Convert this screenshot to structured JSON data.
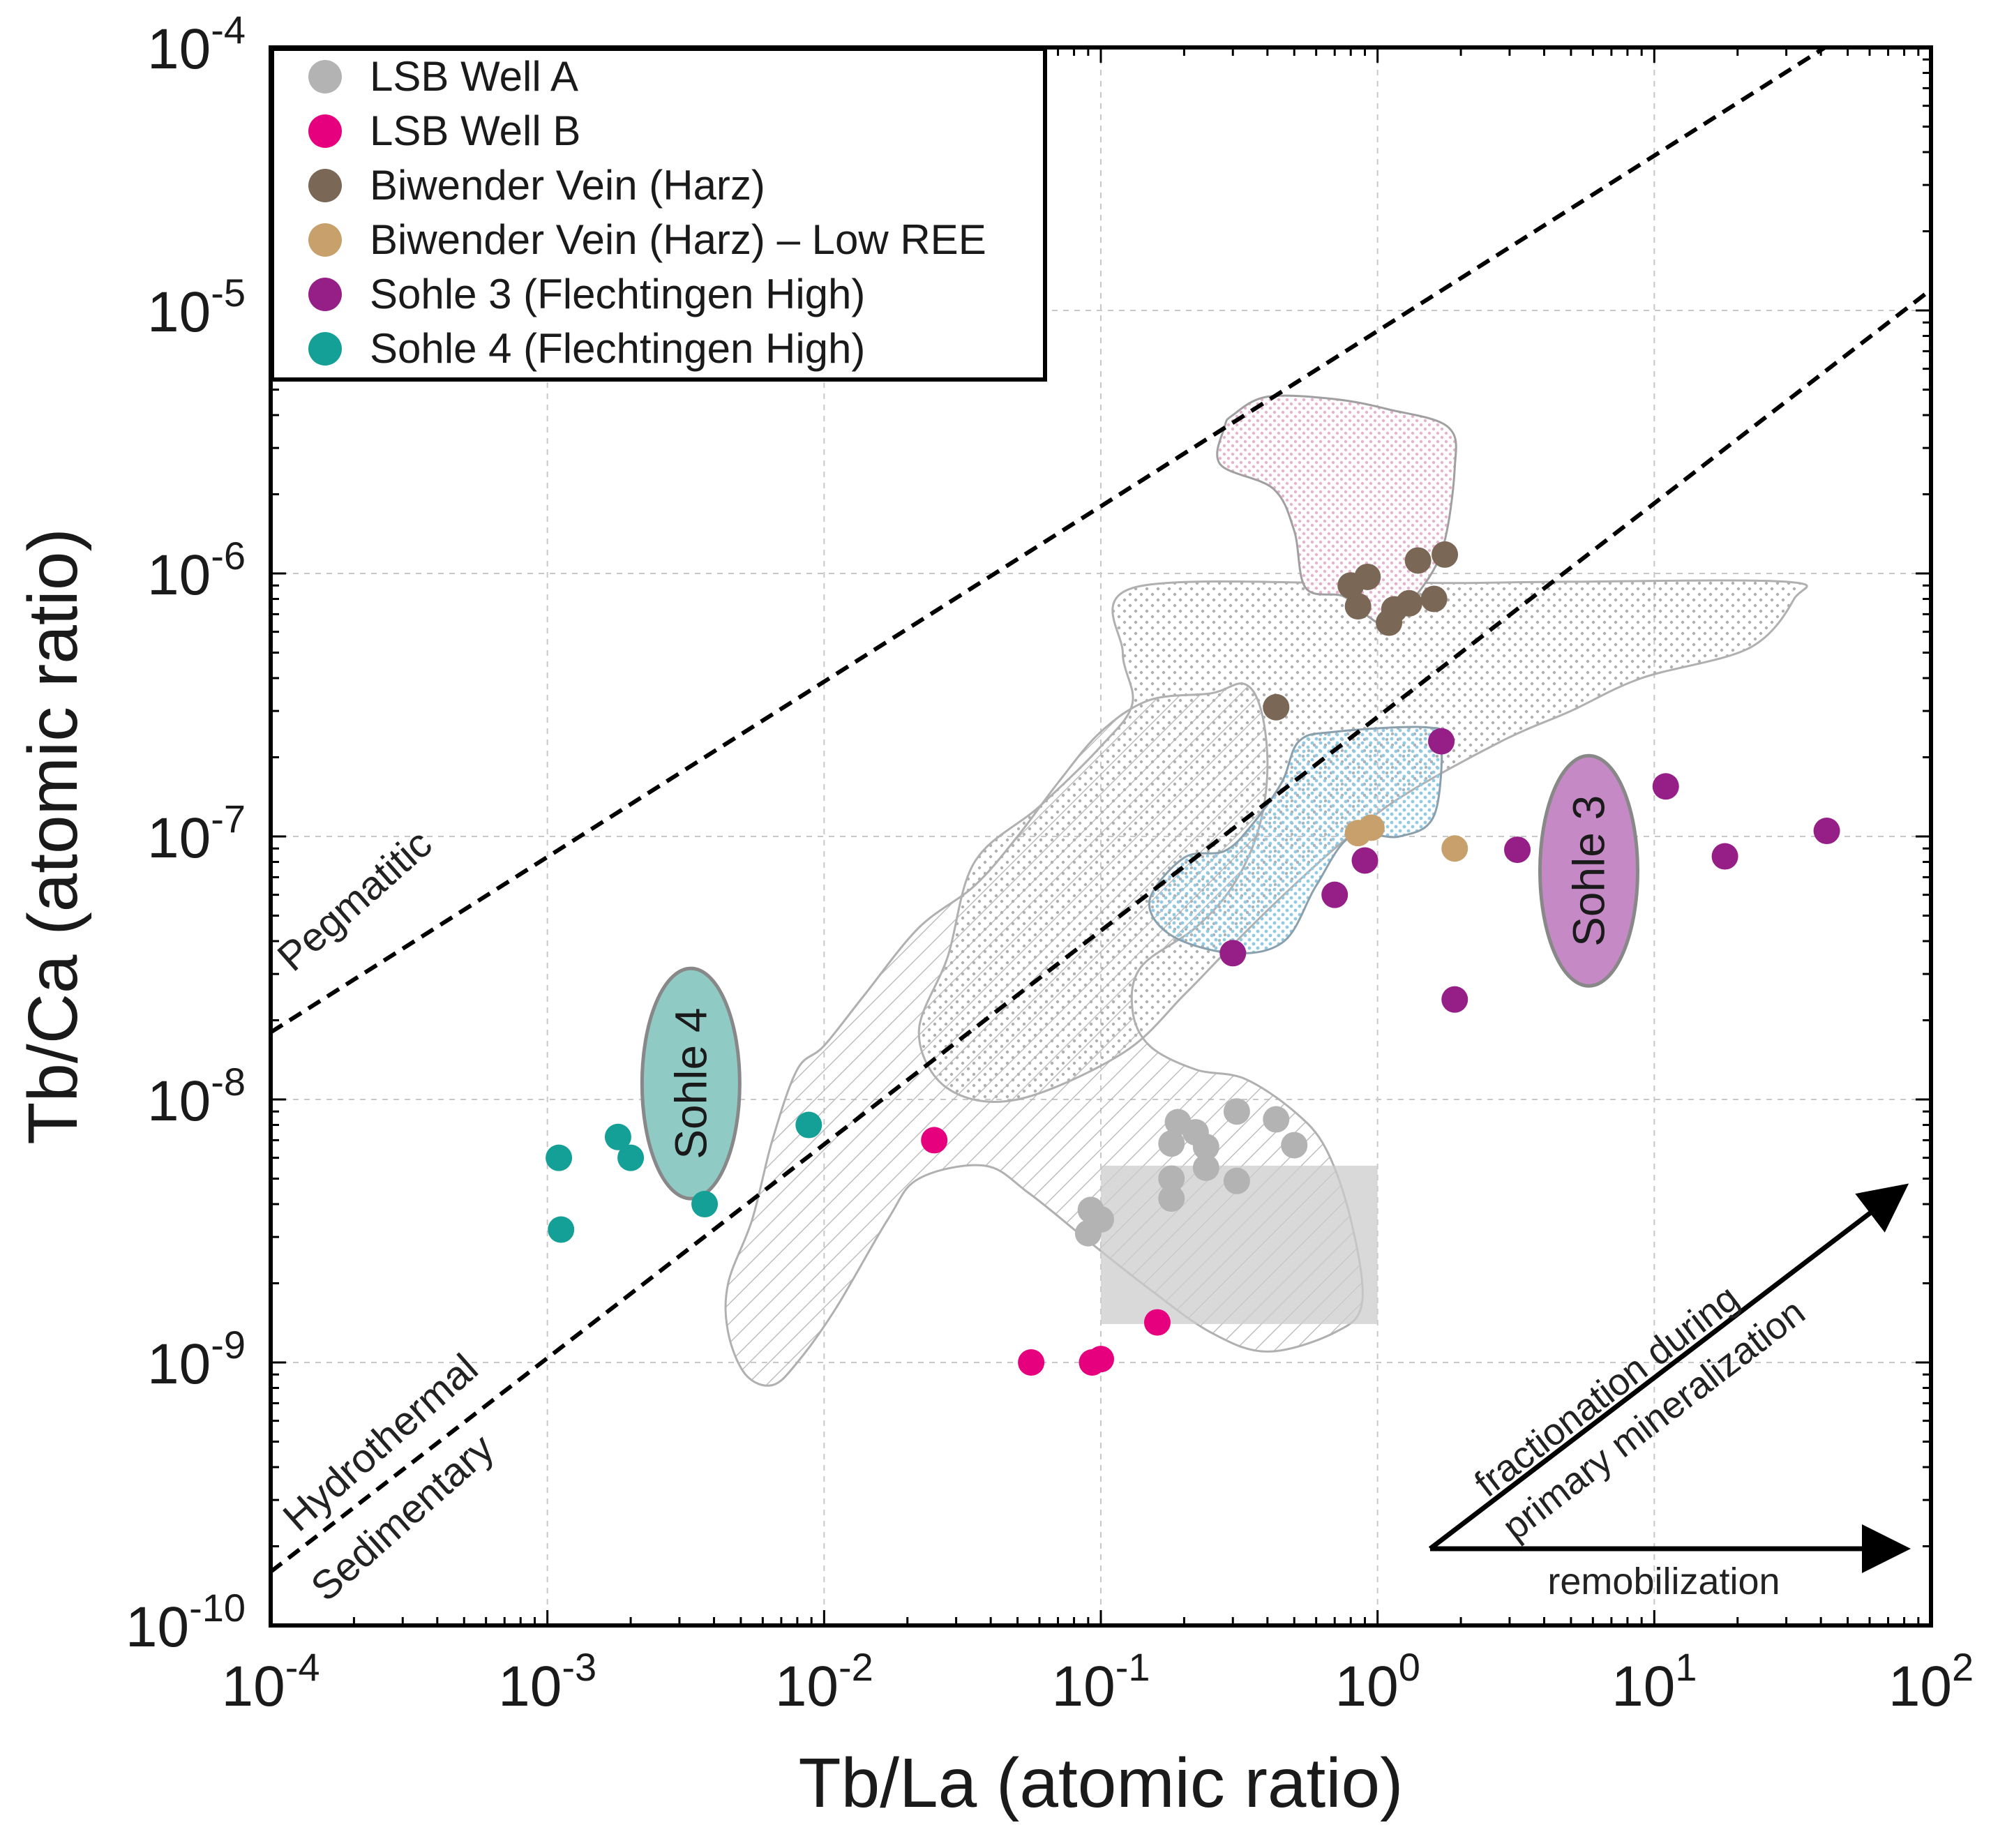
{
  "chart_data": {
    "type": "scatter",
    "title": "",
    "xlabel": "Tb/La (atomic ratio)",
    "ylabel": "Tb/Ca (atomic ratio)",
    "x_scale": "log",
    "y_scale": "log",
    "xlim": [
      0.0001,
      100
    ],
    "ylim": [
      1e-10,
      0.0001
    ],
    "grid": true,
    "x_ticks": [
      {
        "base": "10",
        "exp": "-4",
        "value": 0.0001
      },
      {
        "base": "10",
        "exp": "-3",
        "value": 0.001
      },
      {
        "base": "10",
        "exp": "-2",
        "value": 0.01
      },
      {
        "base": "10",
        "exp": "-1",
        "value": 0.1
      },
      {
        "base": "10",
        "exp": "0",
        "value": 1
      },
      {
        "base": "10",
        "exp": "1",
        "value": 10
      },
      {
        "base": "10",
        "exp": "2",
        "value": 100
      }
    ],
    "y_ticks": [
      {
        "base": "10",
        "exp": "-10",
        "value": 1e-10
      },
      {
        "base": "10",
        "exp": "-9",
        "value": 1e-09
      },
      {
        "base": "10",
        "exp": "-8",
        "value": 1e-08
      },
      {
        "base": "10",
        "exp": "-7",
        "value": 1e-07
      },
      {
        "base": "10",
        "exp": "-6",
        "value": 1e-06
      },
      {
        "base": "10",
        "exp": "-5",
        "value": 1e-05
      },
      {
        "base": "10",
        "exp": "-4",
        "value": 0.0001
      }
    ],
    "legend_position": "top-left",
    "series": [
      {
        "name": "LSB Well A",
        "color": "#b3b3b3",
        "points": [
          [
            0.09,
            3.1e-09
          ],
          [
            0.092,
            3.8e-09
          ],
          [
            0.1,
            3.5e-09
          ],
          [
            0.18,
            4.2e-09
          ],
          [
            0.18,
            5e-09
          ],
          [
            0.18,
            6.8e-09
          ],
          [
            0.19,
            8.2e-09
          ],
          [
            0.22,
            7.5e-09
          ],
          [
            0.24,
            6.6e-09
          ],
          [
            0.24,
            5.5e-09
          ],
          [
            0.31,
            4.9e-09
          ],
          [
            0.31,
            9e-09
          ],
          [
            0.43,
            8.4e-09
          ],
          [
            0.5,
            6.7e-09
          ]
        ]
      },
      {
        "name": "LSB Well B",
        "color": "#e6007e",
        "points": [
          [
            0.025,
            7e-09
          ],
          [
            0.056,
            1e-09
          ],
          [
            0.093,
            1e-09
          ],
          [
            0.1,
            1.03e-09
          ],
          [
            0.16,
            1.42e-09
          ]
        ]
      },
      {
        "name": "Biwender Vein (Harz)",
        "color": "#7a6755",
        "points": [
          [
            0.43,
            3.1e-07
          ],
          [
            0.8,
            9e-07
          ],
          [
            0.85,
            7.5e-07
          ],
          [
            0.92,
            9.7e-07
          ],
          [
            1.1,
            6.5e-07
          ],
          [
            1.15,
            7.3e-07
          ],
          [
            1.3,
            7.7e-07
          ],
          [
            1.4,
            1.12e-06
          ],
          [
            1.6,
            8e-07
          ],
          [
            1.75,
            1.18e-06
          ]
        ]
      },
      {
        "name": "Biwender Vein (Harz) – Low REE",
        "color": "#c8a06b",
        "points": [
          [
            0.85,
            1.03e-07
          ],
          [
            0.95,
            1.08e-07
          ],
          [
            1.9,
            9e-08
          ]
        ]
      },
      {
        "name": "Sohle 3 (Flechtingen High)",
        "color": "#961e87",
        "points": [
          [
            0.3,
            3.6e-08
          ],
          [
            0.7,
            6e-08
          ],
          [
            0.9,
            8.1e-08
          ],
          [
            1.7,
            2.3e-07
          ],
          [
            1.9,
            2.4e-08
          ],
          [
            3.2,
            8.9e-08
          ],
          [
            11,
            1.55e-07
          ],
          [
            18,
            8.4e-08
          ],
          [
            42,
            1.05e-07
          ]
        ]
      },
      {
        "name": "Sohle 4 (Flechtingen High)",
        "color": "#14a096",
        "points": [
          [
            0.0011,
            6e-09
          ],
          [
            0.00112,
            3.2e-09
          ],
          [
            0.0018,
            7.2e-09
          ],
          [
            0.002,
            6e-09
          ],
          [
            0.0037,
            4e-09
          ],
          [
            0.0088,
            8e-09
          ]
        ]
      }
    ],
    "reference_lines": [
      {
        "label": "Pegmatitic",
        "from": [
          0.0001,
          1.8e-08
        ],
        "to": [
          100,
          0.00018
        ]
      },
      {
        "label_upper": "Hydrothermal",
        "label_lower": "Sedimentary",
        "from": [
          0.0001,
          1.6e-10
        ],
        "to": [
          100,
          1.2e-05
        ]
      }
    ],
    "field_labels": [
      {
        "text": "Sohle 4",
        "x": 0.0033,
        "y": 1.15e-08
      },
      {
        "text": "Sohle 3",
        "x": 5.8,
        "y": 7.4e-08
      }
    ],
    "annotations": [
      {
        "text": "fractionation during",
        "type": "diagonal-arrow"
      },
      {
        "text": "primary mineralization",
        "type": "diagonal-arrow"
      },
      {
        "text": "remobilization",
        "type": "horizontal-arrow"
      }
    ],
    "fields": [
      {
        "name": "pink-field",
        "color": "#e7a8c8",
        "points": [
          [
            0.3,
            4e-06
          ],
          [
            0.4,
            4.7e-06
          ],
          [
            0.7,
            4.6e-06
          ],
          [
            1.1,
            4.2e-06
          ],
          [
            1.8,
            3.6e-06
          ],
          [
            1.9,
            2.5e-06
          ],
          [
            1.7,
            1.2e-06
          ],
          [
            1.3,
            7.6e-07
          ],
          [
            1.1,
            6.3e-07
          ],
          [
            0.9,
            7e-07
          ],
          [
            0.75,
            8.2e-07
          ],
          [
            0.55,
            8.8e-07
          ],
          [
            0.5,
            1.45e-06
          ],
          [
            0.42,
            2.1e-06
          ],
          [
            0.27,
            2.6e-06
          ],
          [
            0.28,
            3.6e-06
          ]
        ]
      },
      {
        "name": "dotted-grey-field",
        "color": "#a8a8a8",
        "points": [
          [
            0.13,
            8.8e-07
          ],
          [
            0.8,
            9.2e-07
          ],
          [
            2,
            9.2e-07
          ],
          [
            5,
            9.3e-07
          ],
          [
            30,
            9.3e-07
          ],
          [
            32,
            8e-07
          ],
          [
            22,
            5.2e-07
          ],
          [
            9,
            4e-07
          ],
          [
            5,
            3e-07
          ],
          [
            2.8,
            2.3e-07
          ],
          [
            1.2,
            1.4e-07
          ],
          [
            0.7,
            9e-08
          ],
          [
            0.42,
            5.5e-08
          ],
          [
            0.28,
            3.6e-08
          ],
          [
            0.2,
            2.5e-08
          ],
          [
            0.12,
            1.5e-08
          ],
          [
            0.05,
            1e-08
          ],
          [
            0.028,
            1.1e-08
          ],
          [
            0.022,
            1.8e-08
          ],
          [
            0.028,
            3.5e-08
          ],
          [
            0.035,
            8e-08
          ],
          [
            0.06,
            1.3e-07
          ],
          [
            0.1,
            2.2e-07
          ],
          [
            0.13,
            3.2e-07
          ],
          [
            0.12,
            5e-07
          ]
        ]
      },
      {
        "name": "hatched-grey-field",
        "color": "#a8a8a8",
        "points": [
          [
            0.25,
            3.5e-07
          ],
          [
            0.33,
            3.8e-07
          ],
          [
            0.38,
            3e-07
          ],
          [
            0.4,
            1.8e-07
          ],
          [
            0.37,
            1.05e-07
          ],
          [
            0.3,
            6.5e-08
          ],
          [
            0.22,
            4.5e-08
          ],
          [
            0.14,
            3.2e-08
          ],
          [
            0.13,
            2.2e-08
          ],
          [
            0.15,
            1.6e-08
          ],
          [
            0.22,
            1.3e-08
          ],
          [
            0.33,
            1.2e-08
          ],
          [
            0.5,
            9e-09
          ],
          [
            0.65,
            6.5e-09
          ],
          [
            0.8,
            3.5e-09
          ],
          [
            0.88,
            1.7e-09
          ],
          [
            0.7,
            1.3e-09
          ],
          [
            0.4,
            1.1e-09
          ],
          [
            0.25,
            1.3e-09
          ],
          [
            0.15,
            1.9e-09
          ],
          [
            0.09,
            2.9e-09
          ],
          [
            0.055,
            4.4e-09
          ],
          [
            0.038,
            5.6e-09
          ],
          [
            0.022,
            5e-09
          ],
          [
            0.017,
            3.5e-09
          ],
          [
            0.011,
            1.6e-09
          ],
          [
            0.008,
            1e-09
          ],
          [
            0.0065,
            8.2e-10
          ],
          [
            0.0052,
            9e-10
          ],
          [
            0.0045,
            1.3e-09
          ],
          [
            0.0045,
            2e-09
          ],
          [
            0.0055,
            3.5e-09
          ],
          [
            0.0065,
            7e-09
          ],
          [
            0.008,
            1.3e-08
          ],
          [
            0.01,
            1.6e-08
          ],
          [
            0.014,
            2.5e-08
          ],
          [
            0.022,
            4.5e-08
          ],
          [
            0.035,
            6.5e-08
          ],
          [
            0.05,
            1e-07
          ],
          [
            0.07,
            1.6e-07
          ],
          [
            0.1,
            2.5e-07
          ],
          [
            0.15,
            3.3e-07
          ]
        ]
      },
      {
        "name": "blue-field",
        "color": "#8ec9e6",
        "points": [
          [
            0.52,
            2.3e-07
          ],
          [
            0.7,
            2.5e-07
          ],
          [
            1.5,
            2.6e-07
          ],
          [
            1.7,
            2.3e-07
          ],
          [
            1.6,
            1.2e-07
          ],
          [
            1.2,
            1e-07
          ],
          [
            0.8,
            1e-07
          ],
          [
            0.6,
            6.5e-08
          ],
          [
            0.46,
            4e-08
          ],
          [
            0.3,
            3.6e-08
          ],
          [
            0.18,
            4.2e-08
          ],
          [
            0.15,
            5.7e-08
          ],
          [
            0.2,
            8.3e-08
          ],
          [
            0.28,
            8.8e-08
          ],
          [
            0.35,
            1.1e-07
          ],
          [
            0.45,
            1.6e-07
          ]
        ]
      }
    ],
    "highlight_box": {
      "x": [
        0.1,
        1
      ],
      "y": [
        1.4e-09,
        5.6e-09
      ]
    }
  }
}
